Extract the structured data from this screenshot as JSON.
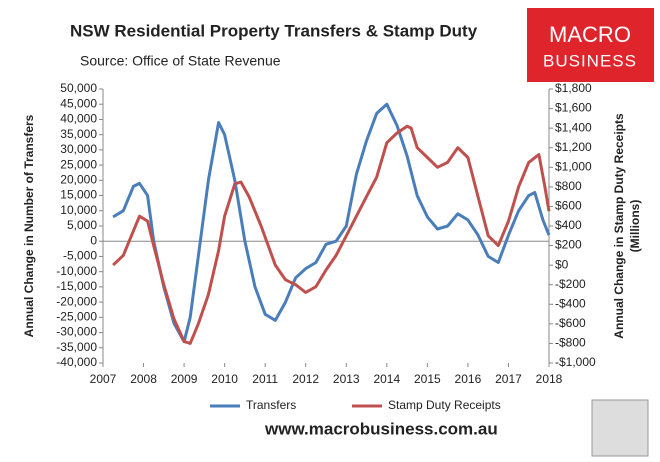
{
  "chart_data": {
    "type": "line",
    "title": "NSW Residential Property Transfers & Stamp Duty",
    "subtitle": "Source: Office of State Revenue",
    "logo": [
      "MACRO",
      "BUSINESS"
    ],
    "footer": "www.macrobusiness.com.au",
    "ylabel": "Annual Change in Number of Transfers",
    "y2label": [
      "Annual Change in Stamp Duty Receipts",
      "(Millions)"
    ],
    "xlim": [
      2007,
      2018
    ],
    "xticks": [
      2007,
      2008,
      2009,
      2010,
      2011,
      2012,
      2013,
      2014,
      2015,
      2016,
      2017,
      2018
    ],
    "ylim": [
      -40000,
      50000
    ],
    "yticks": [
      {
        "value": 50000,
        "label": "50,000"
      },
      {
        "value": 45000,
        "label": "45,000"
      },
      {
        "value": 40000,
        "label": "40,000"
      },
      {
        "value": 35000,
        "label": "35,000"
      },
      {
        "value": 30000,
        "label": "30,000"
      },
      {
        "value": 25000,
        "label": "25,000"
      },
      {
        "value": 20000,
        "label": "20,000"
      },
      {
        "value": 15000,
        "label": "15,000"
      },
      {
        "value": 10000,
        "label": "10,000"
      },
      {
        "value": 5000,
        "label": "5,000"
      },
      0,
      {
        "value": -5000,
        "label": "-5,000"
      },
      {
        "value": -10000,
        "label": "-10,000"
      },
      {
        "value": -15000,
        "label": "-15,000"
      },
      {
        "value": -20000,
        "label": "-20,000"
      },
      {
        "value": -25000,
        "label": "-25,000"
      },
      {
        "value": -30000,
        "label": "-30,000"
      },
      {
        "value": -35000,
        "label": "-35,000"
      },
      {
        "value": -40000,
        "label": "-40,000"
      }
    ],
    "y2lim": [
      -1000,
      1800
    ],
    "y2ticks": [
      {
        "value": 1800,
        "label": "$1,800"
      },
      {
        "value": 1600,
        "label": "$1,600"
      },
      {
        "value": 1400,
        "label": "$1,400"
      },
      {
        "value": 1200,
        "label": "$1,200"
      },
      {
        "value": 1000,
        "label": "$1,000"
      },
      {
        "value": 800,
        "label": "$800"
      },
      {
        "value": 600,
        "label": "$600"
      },
      {
        "value": 400,
        "label": "$400"
      },
      {
        "value": 200,
        "label": "$200"
      },
      {
        "value": 0,
        "label": "$0"
      },
      {
        "value": -200,
        "label": "-$200"
      },
      {
        "value": -400,
        "label": "-$400"
      },
      {
        "value": -600,
        "label": "-$600"
      },
      {
        "value": -800,
        "label": "-$800"
      },
      {
        "value": -1000,
        "label": "-$1,000"
      }
    ],
    "series": [
      {
        "name": "Transfers",
        "color": "#4a7ebb",
        "axis": "y",
        "x": [
          2007.25,
          2007.5,
          2007.75,
          2007.9,
          2008.1,
          2008.25,
          2008.5,
          2008.75,
          2009.0,
          2009.15,
          2009.35,
          2009.6,
          2009.85,
          2010.0,
          2010.25,
          2010.5,
          2010.75,
          2011.0,
          2011.25,
          2011.5,
          2011.75,
          2012.0,
          2012.25,
          2012.5,
          2012.75,
          2013.0,
          2013.25,
          2013.5,
          2013.75,
          2014.0,
          2014.25,
          2014.5,
          2014.75,
          2015.0,
          2015.25,
          2015.5,
          2015.75,
          2016.0,
          2016.25,
          2016.5,
          2016.75,
          2017.0,
          2017.25,
          2017.5,
          2017.65,
          2017.85,
          2018.0
        ],
        "values": [
          8000,
          10000,
          18000,
          19000,
          15000,
          0,
          -15000,
          -27000,
          -33000,
          -25000,
          -5000,
          20000,
          39000,
          35000,
          20000,
          0,
          -15000,
          -24000,
          -26000,
          -20000,
          -12000,
          -9000,
          -7000,
          -1000,
          0,
          5000,
          22000,
          33000,
          42000,
          45000,
          38000,
          28000,
          15000,
          8000,
          4000,
          5000,
          9000,
          7000,
          2000,
          -5000,
          -7000,
          2000,
          10000,
          15000,
          16000,
          7000,
          2000
        ]
      },
      {
        "name": "Stamp Duty Receipts",
        "color": "#c0504d",
        "axis": "y2",
        "x": [
          2007.25,
          2007.5,
          2007.75,
          2007.9,
          2008.1,
          2008.25,
          2008.5,
          2008.75,
          2009.0,
          2009.15,
          2009.35,
          2009.6,
          2009.85,
          2010.0,
          2010.25,
          2010.4,
          2010.6,
          2010.9,
          2011.25,
          2011.5,
          2011.75,
          2012.0,
          2012.25,
          2012.5,
          2012.75,
          2013.0,
          2013.25,
          2013.5,
          2013.75,
          2014.0,
          2014.25,
          2014.5,
          2014.6,
          2014.75,
          2015.0,
          2015.25,
          2015.5,
          2015.75,
          2016.0,
          2016.25,
          2016.5,
          2016.75,
          2017.0,
          2017.25,
          2017.5,
          2017.75,
          2017.9,
          2018.0
        ],
        "values": [
          0,
          100,
          350,
          500,
          450,
          200,
          -200,
          -550,
          -780,
          -800,
          -600,
          -300,
          150,
          500,
          830,
          850,
          700,
          400,
          0,
          -150,
          -200,
          -280,
          -220,
          -50,
          100,
          300,
          500,
          700,
          900,
          1250,
          1350,
          1420,
          1400,
          1200,
          1100,
          1000,
          1050,
          1200,
          1100,
          700,
          300,
          200,
          450,
          800,
          1050,
          1130,
          800,
          550
        ]
      }
    ]
  }
}
